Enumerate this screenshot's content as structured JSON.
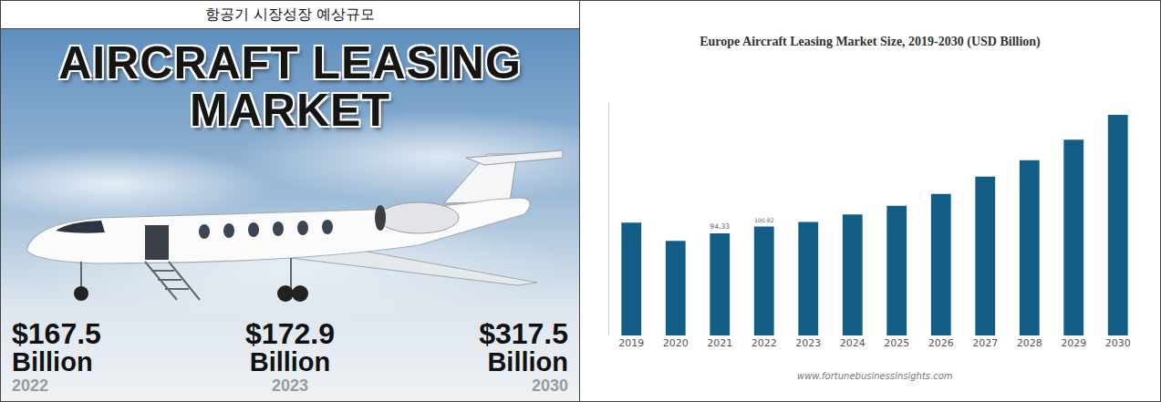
{
  "poster": {
    "header": "항공기 시장성장 예상규모",
    "title": [
      "AIRCRAFT LEASING",
      "MARKET"
    ],
    "figures": [
      {
        "amount": "$167.5",
        "unit": "Billion",
        "year": "2022"
      },
      {
        "amount": "$172.9",
        "unit": "Billion",
        "year": "2023"
      },
      {
        "amount": "$317.5",
        "unit": "Billion",
        "year": "2030"
      }
    ]
  },
  "chart_data": {
    "type": "bar",
    "title": "Europe Aircraft Leasing Market Size, 2019-2030 (USD Billion)",
    "source": "www.fortunebusinessinsights.com",
    "categories": [
      "2019",
      "2020",
      "2021",
      "2022",
      "2023",
      "2024",
      "2025",
      "2026",
      "2027",
      "2028",
      "2029",
      "2030"
    ],
    "values": [
      104.3,
      87.4,
      94.33,
      100.82,
      105,
      112,
      120,
      131,
      147,
      162,
      181,
      204
    ],
    "value_labels": [
      null,
      null,
      "94.33",
      "100.82",
      null,
      null,
      null,
      null,
      null,
      null,
      null,
      null
    ],
    "data_labels": true,
    "color": "#135e86",
    "ylim": [
      0,
      215
    ],
    "yticks": [],
    "tick_labels": "x",
    "grid": false
  }
}
